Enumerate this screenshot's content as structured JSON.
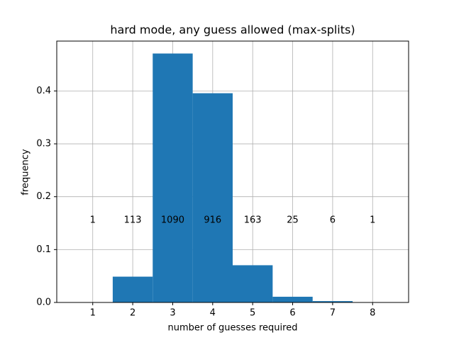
{
  "chart_data": {
    "type": "histogram",
    "title": "hard mode, any guess allowed (max-splits)",
    "x_label": "number of guesses required",
    "y_label": "frequency",
    "bins": [
      0.5,
      1.5,
      2.5,
      3.5,
      4.5,
      5.5,
      6.5,
      7.5,
      8.5
    ],
    "values": [
      0.000432,
      0.0488,
      0.4708,
      0.3957,
      0.0704,
      0.0108,
      0.00259,
      0.000432
    ],
    "counts": [
      1,
      113,
      1090,
      916,
      163,
      25,
      6,
      1
    ],
    "color": "#1f77b4",
    "xlim": [
      0.1,
      8.9
    ],
    "xticks": [
      1,
      2,
      3,
      4,
      5,
      6,
      7,
      8
    ],
    "ylim": [
      0,
      0.4943
    ],
    "yticks": [
      {
        "value": 0,
        "label": "0.0"
      },
      0.1,
      0.2,
      0.3,
      0.4
    ],
    "grid": true
  }
}
